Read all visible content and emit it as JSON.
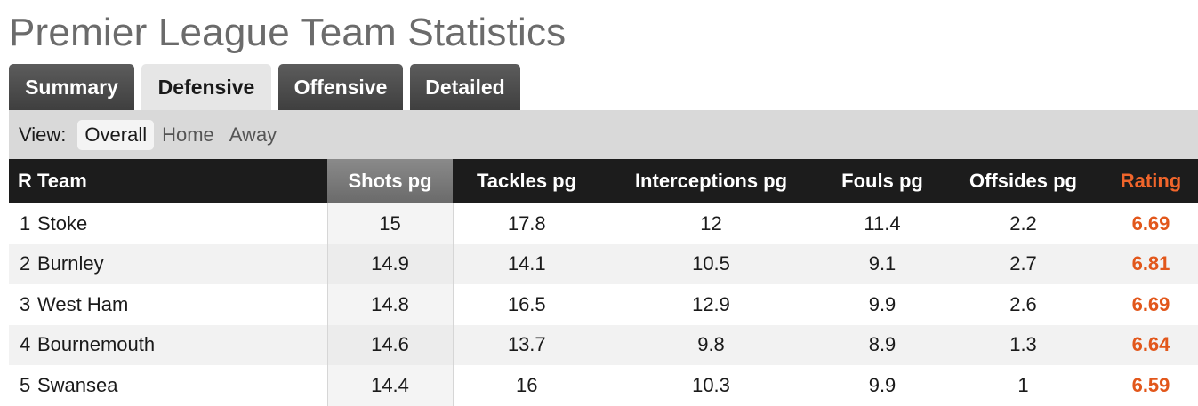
{
  "page_title": "Premier League Team Statistics",
  "tabs": [
    {
      "label": "Summary",
      "active": false
    },
    {
      "label": "Defensive",
      "active": true
    },
    {
      "label": "Offensive",
      "active": false
    },
    {
      "label": "Detailed",
      "active": false
    }
  ],
  "view": {
    "label": "View:",
    "options": [
      "Overall",
      "Home",
      "Away"
    ],
    "selected": "Overall"
  },
  "table": {
    "sorted_column": "Shots pg",
    "columns": [
      "R",
      "Team",
      "Shots pg",
      "Tackles pg",
      "Interceptions pg",
      "Fouls pg",
      "Offsides pg",
      "Rating"
    ],
    "rows": [
      {
        "rank": "1",
        "team": "Stoke",
        "shots": "15",
        "tackles": "17.8",
        "interceptions": "12",
        "fouls": "11.4",
        "offsides": "2.2",
        "rating": "6.69"
      },
      {
        "rank": "2",
        "team": "Burnley",
        "shots": "14.9",
        "tackles": "14.1",
        "interceptions": "10.5",
        "fouls": "9.1",
        "offsides": "2.7",
        "rating": "6.81"
      },
      {
        "rank": "3",
        "team": "West Ham",
        "shots": "14.8",
        "tackles": "16.5",
        "interceptions": "12.9",
        "fouls": "9.9",
        "offsides": "2.6",
        "rating": "6.69"
      },
      {
        "rank": "4",
        "team": "Bournemouth",
        "shots": "14.6",
        "tackles": "13.7",
        "interceptions": "9.8",
        "fouls": "8.9",
        "offsides": "1.3",
        "rating": "6.64"
      },
      {
        "rank": "5",
        "team": "Swansea",
        "shots": "14.4",
        "tackles": "16",
        "interceptions": "10.3",
        "fouls": "9.9",
        "offsides": "1",
        "rating": "6.59"
      }
    ]
  },
  "colors": {
    "rating_accent": "#e2571b",
    "header_bg": "#1c1c1c",
    "tab_bg": "#4d4d4d"
  }
}
